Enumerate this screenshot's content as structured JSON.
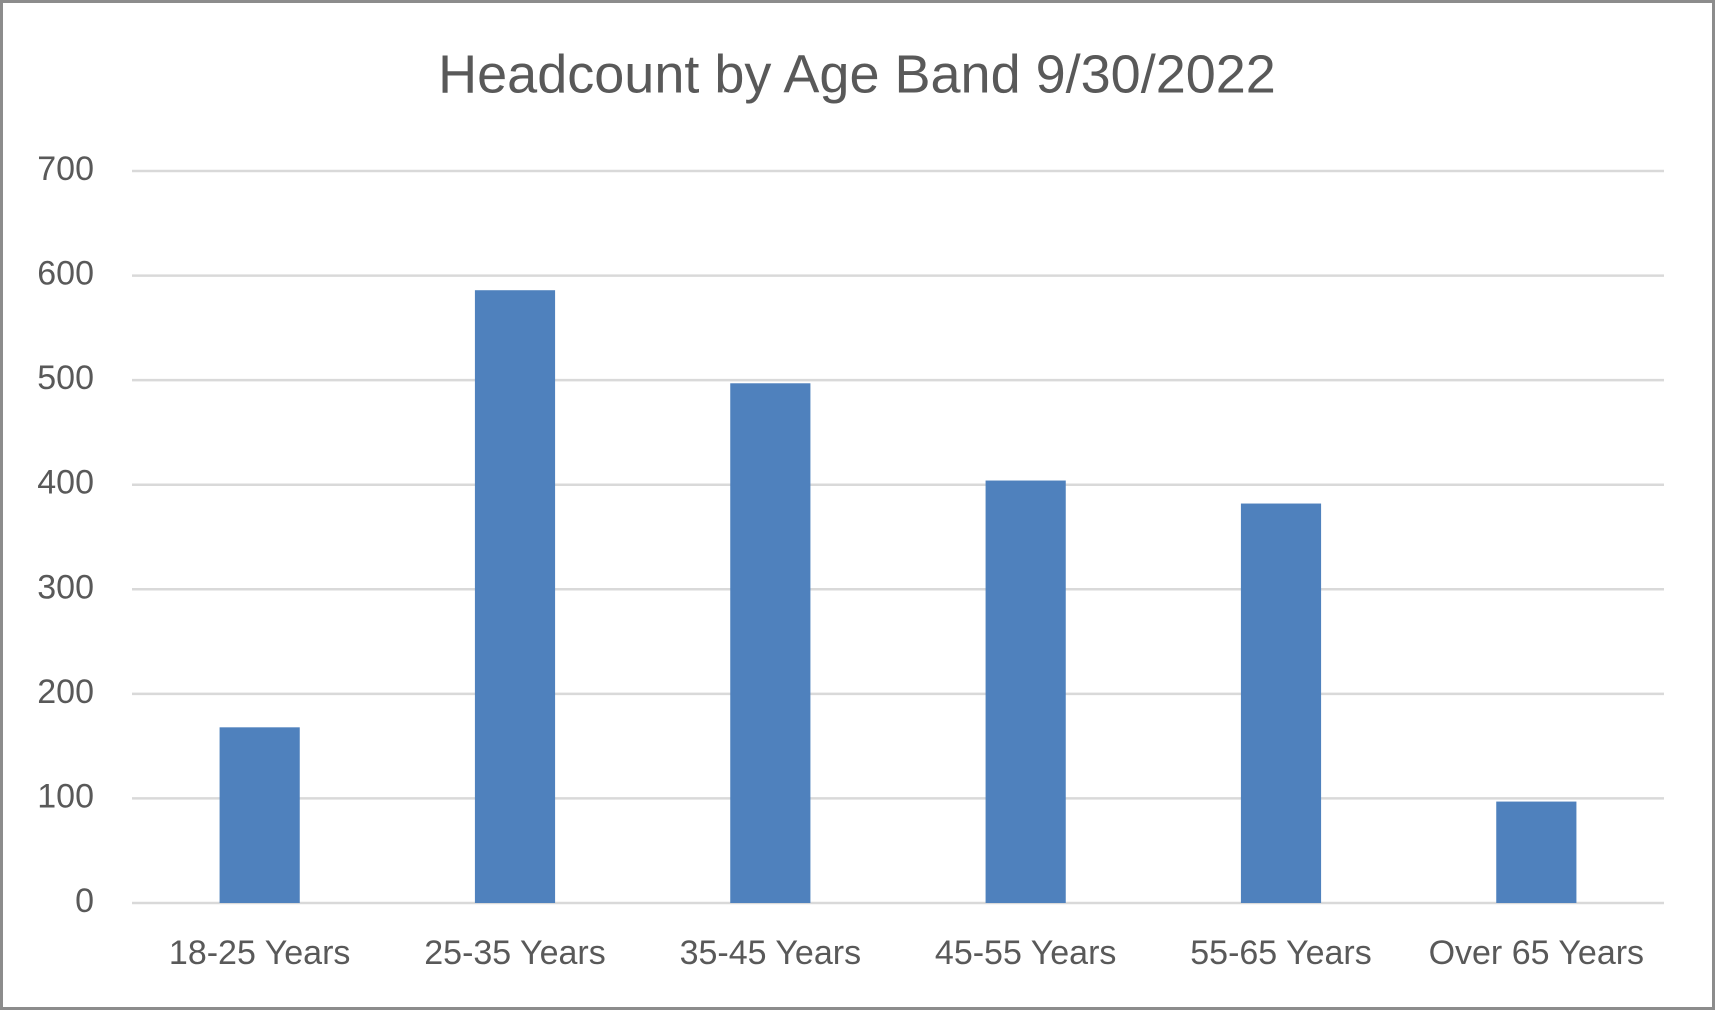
{
  "chart_data": {
    "type": "bar",
    "title": "Headcount by Age Band 9/30/2022",
    "categories": [
      "18-25 Years",
      "25-35 Years",
      "35-45 Years",
      "45-55 Years",
      "55-65 Years",
      "Over 65 Years"
    ],
    "values": [
      168,
      586,
      497,
      404,
      382,
      97
    ],
    "color": "#4f81bd",
    "ylim": [
      0,
      700
    ],
    "yticks": [
      0,
      100,
      200,
      300,
      400,
      500,
      600,
      700
    ],
    "grid": true
  }
}
